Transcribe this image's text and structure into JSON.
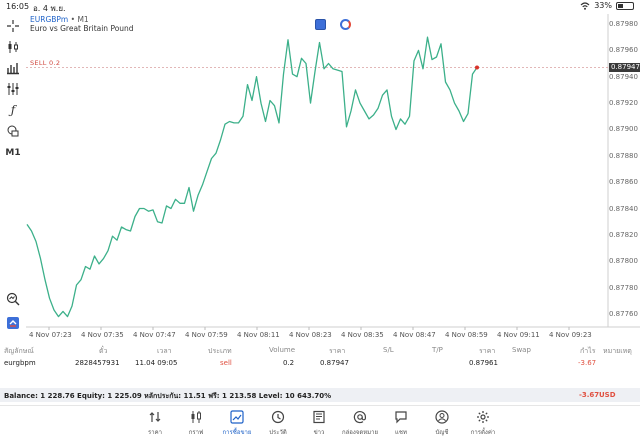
{
  "status_bar": {
    "time": "16:05",
    "date": "อ. 4 พ.ย.",
    "battery": "33%",
    "battery_level": 0.33
  },
  "chart": {
    "symbol": "EURGBPm",
    "separator": " • ",
    "timeframe": "M1",
    "description": "Euro vs Great Britain Pound",
    "sell_label": "SELL 0.2",
    "current_price": "0.87947",
    "y_ticks": [
      "0.87980",
      "0.87960",
      "0.87940",
      "0.87920",
      "0.87900",
      "0.87880",
      "0.87860",
      "0.87840",
      "0.87820",
      "0.87800",
      "0.87780",
      "0.87760"
    ],
    "x_ticks": [
      "4 Nov 07:23",
      "4 Nov 07:35",
      "4 Nov 07:47",
      "4 Nov 07:59",
      "4 Nov 08:11",
      "4 Nov 08:23",
      "4 Nov 08:35",
      "4 Nov 08:47",
      "4 Nov 08:59",
      "4 Nov 09:11",
      "4 Nov 09:23"
    ],
    "line_color": "#3cb08a",
    "timeframe_label": "M1"
  },
  "chart_data": {
    "type": "line",
    "title": "",
    "xlabel": "",
    "ylabel": "",
    "ylim": [
      0.8775,
      0.8799
    ],
    "y": [
      0.87828,
      0.87823,
      0.87815,
      0.87802,
      0.87786,
      0.87772,
      0.87763,
      0.87758,
      0.87762,
      0.87758,
      0.87766,
      0.87782,
      0.87786,
      0.87796,
      0.87794,
      0.87804,
      0.87798,
      0.87802,
      0.87808,
      0.87819,
      0.87816,
      0.87826,
      0.87824,
      0.87823,
      0.87834,
      0.8784,
      0.8784,
      0.87838,
      0.87839,
      0.8783,
      0.87829,
      0.87842,
      0.8784,
      0.87847,
      0.87844,
      0.87844,
      0.87856,
      0.87838,
      0.8785,
      0.87858,
      0.87868,
      0.87878,
      0.87882,
      0.87892,
      0.87904,
      0.87906,
      0.87905,
      0.87905,
      0.8791,
      0.87934,
      0.87922,
      0.8794,
      0.8792,
      0.87906,
      0.87922,
      0.87918,
      0.87905,
      0.87942,
      0.87968,
      0.87942,
      0.8794,
      0.87954,
      0.8795,
      0.8792,
      0.87944,
      0.87966,
      0.87946,
      0.8795,
      0.87946,
      0.87945,
      0.87944,
      0.87902,
      0.87914,
      0.8793,
      0.8792,
      0.87914,
      0.87908,
      0.87911,
      0.87916,
      0.87926,
      0.8793,
      0.8791,
      0.879,
      0.87908,
      0.87904,
      0.8791,
      0.87952,
      0.8796,
      0.87946,
      0.8797,
      0.87953,
      0.87955,
      0.87965,
      0.87936,
      0.8793,
      0.8792,
      0.87914,
      0.87906,
      0.87912,
      0.87942,
      0.87947
    ],
    "current_price_line": 0.87947,
    "grid": false,
    "legend": "none"
  },
  "trades": {
    "headers": [
      "สัญลักษณ์",
      "ตั๋ว",
      "เวลา",
      "ประเภท",
      "Volume",
      "ราคา",
      "S/L",
      "T/P",
      "ราคา",
      "Swap",
      "กำไร",
      "หมายเหตุ"
    ],
    "rows": [
      {
        "symbol": "eurgbpm",
        "ticket": "2828457931",
        "time": "11.04 09:05",
        "type": "sell",
        "volume": "0.2",
        "open_price": "0.87947",
        "sl": "",
        "tp": "",
        "price": "0.87961",
        "swap": "",
        "profit": "-3.67",
        "comment": ""
      }
    ],
    "balance_text": "Balance: 1 228.76 Equity: 1 225.09 หลักประกัน: 11.51 ฟรี: 1 213.58 Level: 10 643.70%",
    "total_profit": "-3.67",
    "currency": "USD"
  },
  "tabbar": {
    "items": [
      {
        "label": "ราคา",
        "icon": "updown-arrows-icon"
      },
      {
        "label": "กราฟ",
        "icon": "candles-icon"
      },
      {
        "label": "การซื้อขาย",
        "icon": "trade-chart-icon",
        "active": true
      },
      {
        "label": "ประวัติ",
        "icon": "history-clock-icon"
      },
      {
        "label": "ข่าว",
        "icon": "news-icon"
      },
      {
        "label": "กล่องจดหมาย",
        "icon": "at-sign-icon"
      },
      {
        "label": "แชท",
        "icon": "chat-bubble-icon"
      },
      {
        "label": "บัญชี",
        "icon": "account-user-icon"
      },
      {
        "label": "การตั้งค่า",
        "icon": "settings-gear-icon"
      }
    ],
    "active_color": "#1e62c8"
  }
}
